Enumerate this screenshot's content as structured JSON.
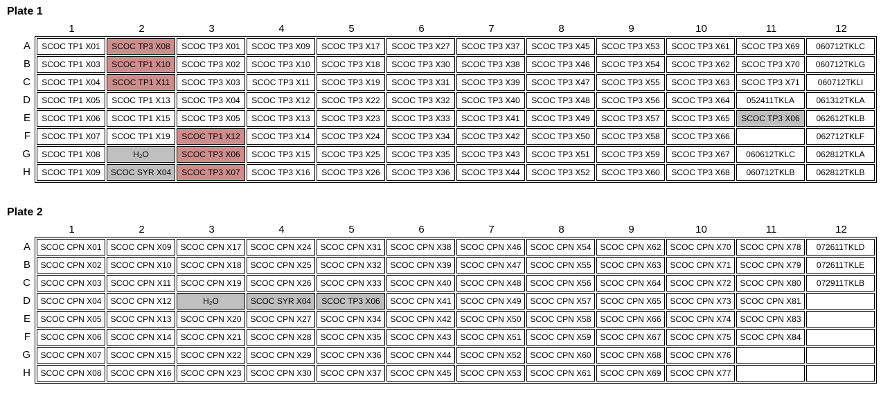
{
  "colors": {
    "pink": "#CE8D8D",
    "gray": "#C0C0C0",
    "border": "#000000",
    "cell_default": "#FFFFFF"
  },
  "plates": [
    {
      "title": "Plate 1",
      "column_headers": [
        "1",
        "2",
        "3",
        "4",
        "5",
        "6",
        "7",
        "8",
        "9",
        "10",
        "11",
        "12"
      ],
      "row_headers": [
        "A",
        "B",
        "C",
        "D",
        "E",
        "F",
        "G",
        "H"
      ],
      "rows": [
        [
          "SCOC TP1 X01",
          {
            "t": "SCOC TP3 X08",
            "bg": "pink"
          },
          "SCOC TP3 X01",
          "SCOC TP3 X09",
          "SCOC TP3 X17",
          "SCOC TP3 X27",
          "SCOC TP3 X37",
          "SCOC TP3 X45",
          "SCOC TP3 X53",
          "SCOC TP3 X61",
          "SCOC TP3 X69",
          "060712TKLC"
        ],
        [
          "SCOC TP1 X03",
          {
            "t": "SCOC TP1 X10",
            "bg": "pink"
          },
          "SCOC TP3 X02",
          "SCOC TP3 X10",
          "SCOC TP3 X18",
          "SCOC TP3 X30",
          "SCOC TP3 X38",
          "SCOC TP3 X46",
          "SCOC TP3 X54",
          "SCOC TP3 X62",
          "SCOC TP3 X70",
          "060712TKLG"
        ],
        [
          "SCOC TP1 X04",
          {
            "t": "SCOC TP1 X11",
            "bg": "pink"
          },
          "SCOC TP3 X03",
          "SCOC TP3 X11",
          "SCOC TP3 X19",
          "SCOC TP3 X31",
          "SCOC TP3 X39",
          "SCOC TP3 X47",
          "SCOC TP3 X55",
          "SCOC TP3 X63",
          "SCOC TP3 X71",
          "060712TKLI"
        ],
        [
          "SCOC TP1 X05",
          "SCOC TP1 X13",
          "SCOC TP3 X04",
          "SCOC TP3 X12",
          "SCOC TP3 X22",
          "SCOC TP3 X32",
          "SCOC TP3 X40",
          "SCOC TP3 X48",
          "SCOC TP3 X56",
          "SCOC TP3 X64",
          "052411TKLA",
          "061312TKLA"
        ],
        [
          "SCOC TP1 X06",
          "SCOC TP1 X15",
          "SCOC TP3 X05",
          "SCOC TP3 X13",
          "SCOC TP3 X23",
          "SCOC TP3 X33",
          "SCOC TP3 X41",
          "SCOC TP3 X49",
          "SCOC TP3 X57",
          "SCOC TP3 X65",
          {
            "t": "SCOC TP3 X06",
            "bg": "gray"
          },
          "062612TKLB"
        ],
        [
          "SCOC TP1 X07",
          "SCOC TP1 X19",
          {
            "t": "SCOC TP1 X12",
            "bg": "pink"
          },
          "SCOC TP3 X14",
          "SCOC TP3 X24",
          "SCOC TP3 X34",
          "SCOC TP3 X42",
          "SCOC TP3 X50",
          "SCOC TP3 X58",
          "SCOC TP3 X66",
          "",
          "062712TKLF"
        ],
        [
          "SCOC TP1 X08",
          {
            "t": "H₂O",
            "bg": "gray"
          },
          {
            "t": "SCOC TP3 X06",
            "bg": "pink"
          },
          "SCOC TP3 X15",
          "SCOC TP3 X25",
          "SCOC TP3 X35",
          "SCOC TP3 X43",
          "SCOC TP3 X51",
          "SCOC TP3 X59",
          "SCOC TP3 X67",
          "060612TKLC",
          "062812TKLA"
        ],
        [
          "SCOC TP1 X09",
          {
            "t": "SCOC SYR X04",
            "bg": "gray"
          },
          {
            "t": "SCOC TP3 X07",
            "bg": "pink"
          },
          "SCOC TP3 X16",
          "SCOC TP3 X26",
          "SCOC TP3 X36",
          "SCOC TP3 X44",
          "SCOC TP3 X52",
          "SCOC TP3 X60",
          "SCOC TP3 X68",
          "060712TKLB",
          "062812TKLB"
        ]
      ]
    },
    {
      "title": "Plate 2",
      "column_headers": [
        "1",
        "2",
        "3",
        "4",
        "5",
        "6",
        "7",
        "8",
        "9",
        "10",
        "11",
        "12"
      ],
      "row_headers": [
        "A",
        "B",
        "C",
        "D",
        "E",
        "F",
        "G",
        "H"
      ],
      "rows": [
        [
          "SCOC CPN X01",
          "SCOC CPN X09",
          "SCOC CPN X17",
          "SCOC CPN X24",
          "SCOC CPN X31",
          "SCOC CPN X38",
          "SCOC CPN X46",
          "SCOC CPN X54",
          "SCOC CPN X62",
          "SCOC CPN X70",
          "SCOC CPN X78",
          "072611TKLD"
        ],
        [
          "SCOC CPN X02",
          "SCOC CPN X10",
          "SCOC CPN X18",
          "SCOC CPN X25",
          "SCOC CPN X32",
          "SCOC CPN X39",
          "SCOC CPN X47",
          "SCOC CPN X55",
          "SCOC CPN X63",
          "SCOC CPN X71",
          "SCOC CPN X79",
          "072611TKLE"
        ],
        [
          "SCOC CPN X03",
          "SCOC CPN X11",
          "SCOC CPN X19",
          "SCOC CPN X26",
          "SCOC CPN X33",
          "SCOC CPN X40",
          "SCOC CPN X48",
          "SCOC CPN X56",
          "SCOC CPN X64",
          "SCOC CPN X72",
          "SCOC CPN X80",
          "072911TKLB"
        ],
        [
          "SCOC CPN X04",
          "SCOC CPN X12",
          {
            "t": "H₂O",
            "bg": "gray"
          },
          {
            "t": "SCOC SYR X04",
            "bg": "gray"
          },
          {
            "t": "SCOC TP3 X06",
            "bg": "gray"
          },
          "SCOC CPN X41",
          "SCOC CPN X49",
          "SCOC CPN X57",
          "SCOC CPN X65",
          "SCOC CPN X73",
          "SCOC CPN X81",
          ""
        ],
        [
          "SCOC CPN X05",
          "SCOC CPN X13",
          "SCOC CPN X20",
          "SCOC CPN X27",
          "SCOC CPN X34",
          "SCOC CPN X42",
          "SCOC CPN X50",
          "SCOC CPN X58",
          "SCOC CPN X66",
          "SCOC CPN X74",
          "SCOC CPN X83",
          ""
        ],
        [
          "SCOC CPN X06",
          "SCOC CPN X14",
          "SCOC CPN X21",
          "SCOC CPN X28",
          "SCOC CPN X35",
          "SCOC CPN X43",
          "SCOC CPN X51",
          "SCOC CPN X59",
          "SCOC CPN X67",
          "SCOC CPN X75",
          "SCOC CPN X84",
          ""
        ],
        [
          "SCOC CPN X07",
          "SCOC CPN X15",
          "SCOC CPN X22",
          "SCOC CPN X29",
          "SCOC CPN X36",
          "SCOC CPN X44",
          "SCOC CPN X52",
          "SCOC CPN X60",
          "SCOC CPN X68",
          "SCOC CPN X76",
          "",
          ""
        ],
        [
          "SCOC CPN X08",
          "SCOC CPN X16",
          "SCOC CPN X23",
          "SCOC CPN X30",
          "SCOC CPN X37",
          "SCOC CPN X45",
          "SCOC CPN X53",
          "SCOC CPN X61",
          "SCOC CPN X69",
          "SCOC CPN X77",
          "",
          ""
        ]
      ]
    }
  ]
}
